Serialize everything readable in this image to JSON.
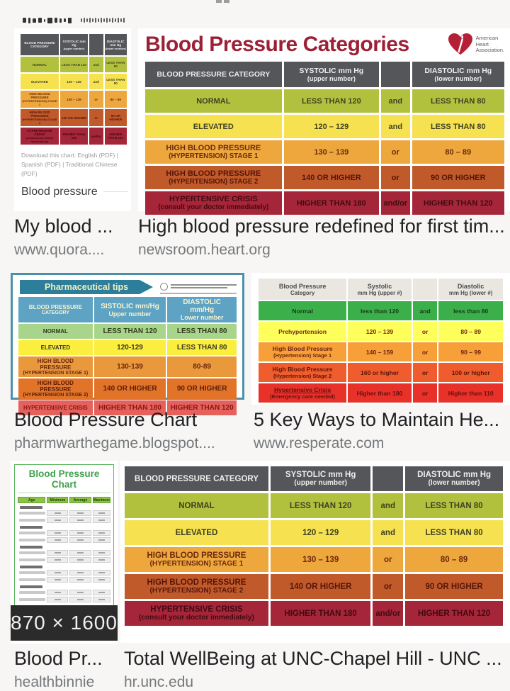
{
  "results": [
    {
      "title": "My blood ...",
      "url": "www.quora...."
    },
    {
      "title": "High blood pressure redefined for first tim...",
      "url": "newsroom.heart.org"
    },
    {
      "title": "Blood Pressure Chart",
      "url": "pharmwarthegame.blogspot...."
    },
    {
      "title": "5 Key Ways to Maintain He...",
      "url": "www.resperate.com"
    },
    {
      "title": "Blood Pr...",
      "url": "healthbinnie"
    },
    {
      "title": "Total WellBeing at UNC-Chapel Hill - UNC ...",
      "url": "hr.unc.edu"
    }
  ],
  "aha_chart": {
    "title": "Blood Pressure Categories",
    "logo_lines": [
      "American",
      "Heart",
      "Association."
    ],
    "brand_red": "#9c2136",
    "header_bg": "#54565a",
    "header_fg": "#ededed",
    "headers": {
      "category": [
        "BLOOD PRESSURE CATEGORY"
      ],
      "systolic": [
        "SYSTOLIC mm Hg",
        "(upper number)"
      ],
      "conj": [
        ""
      ],
      "diastolic": [
        "DIASTOLIC mm Hg",
        "(lower number)"
      ]
    },
    "rows": [
      {
        "category": [
          "NORMAL"
        ],
        "systolic": "LESS THAN 120",
        "conj": "and",
        "diastolic": "LESS THAN 80",
        "bg": "#b1c13e",
        "fg": "#3f4122"
      },
      {
        "category": [
          "ELEVATED"
        ],
        "systolic": "120 – 129",
        "conj": "and",
        "diastolic": "LESS THAN 80",
        "bg": "#f6e251",
        "fg": "#3f4122"
      },
      {
        "category": [
          "HIGH BLOOD PRESSURE",
          "(HYPERTENSION) STAGE 1"
        ],
        "systolic": "130 – 139",
        "conj": "or",
        "diastolic": "80 – 89",
        "bg": "#eda73d",
        "fg": "#6b2a10"
      },
      {
        "category": [
          "HIGH BLOOD PRESSURE",
          "(HYPERTENSION) STAGE 2"
        ],
        "systolic": "140 OR HIGHER",
        "conj": "or",
        "diastolic": "90 OR HIGHER",
        "bg": "#c15a2a",
        "fg": "#55150a"
      },
      {
        "category": [
          "HYPERTENSIVE CRISIS",
          "(consult your doctor immediately)"
        ],
        "systolic": "HIGHER THAN 180",
        "conj": "and/or",
        "diastolic": "HIGHER THAN 120",
        "bg": "#a52639",
        "fg": "#400a12"
      }
    ]
  },
  "quora_image": {
    "download_text": "Download this chart: English (PDF) | Spanish (PDF) | Traditional Chinese (PDF)",
    "heading": "Blood pressure"
  },
  "pharma_chart": {
    "banner": "Pharmaceutical tips",
    "border_color": "#4a92ab",
    "banner_bg": "#2d7e9b",
    "header_bg": "#5ea3c3",
    "header_fg": "#f6f3d0",
    "headers": {
      "category": [
        "BLOOD PRESSURE",
        "CATEGORY"
      ],
      "systolic": [
        "SISTOLIC mm/Hg",
        "Upper number"
      ],
      "diastolic": [
        "DIASTOLIC mm/Hg",
        "Lower number"
      ]
    },
    "rows": [
      {
        "category": [
          "NORMAL"
        ],
        "systolic": "LESS THAN 120",
        "diastolic": "LESS THAN 80",
        "bg": "#a9d48b",
        "fg": "#2f3a1c"
      },
      {
        "category": [
          "ELEVATED"
        ],
        "systolic": "120-129",
        "diastolic": "LESS THAN 80",
        "bg": "#fcee3e",
        "fg": "#3a3a22"
      },
      {
        "category": [
          "HIGH BLOOD PRESSURE",
          "(HYPERTENSION STAGE 1)"
        ],
        "systolic": "130-139",
        "diastolic": "80-89",
        "bg": "#e9993c",
        "fg": "#6d2610"
      },
      {
        "category": [
          "HIGH BLOOD PRESSURE",
          "(HYPERTENSION STAGE 2)"
        ],
        "systolic": "140 OR HIGHER",
        "diastolic": "90 OR HIGHER",
        "bg": "#e27429",
        "fg": "#5c1d08"
      },
      {
        "category": [
          "HYPERTENSIVE CRISIS"
        ],
        "systolic": "HIGHER THAN 180",
        "diastolic": "HIGHER THAN 120",
        "bg": "#e5625c",
        "fg": "#8c1414"
      }
    ]
  },
  "resperate_chart": {
    "header_bg": "#e9e7e0",
    "header_fg": "#4c4c4c",
    "headers": {
      "category": [
        "Blood Pressure",
        "Category"
      ],
      "systolic": [
        "Systolic",
        "mm Hg (upper #)"
      ],
      "conj": [
        ""
      ],
      "diastolic": [
        "Diastolic",
        "mm Hg (lower #)"
      ]
    },
    "rows": [
      {
        "category": [
          "Normal"
        ],
        "systolic": "less than 120",
        "conj": "and",
        "diastolic": "less than 80",
        "bg": "#3bb04a",
        "fg": "#17391a"
      },
      {
        "category": [
          "Prehypertension"
        ],
        "systolic": "120 – 139",
        "conj": "or",
        "diastolic": "80 – 89",
        "bg": "#ffff5c",
        "fg": "#6b2d12"
      },
      {
        "category": [
          "High Blood Pressure",
          "(Hypertension) Stage 1"
        ],
        "systolic": "140 – 159",
        "conj": "or",
        "diastolic": "90 – 99",
        "bg": "#f79f39",
        "fg": "#6b2410"
      },
      {
        "category": [
          "High Blood Pressure",
          "(Hypertension) Stage 2"
        ],
        "systolic": "160 or higher",
        "conj": "or",
        "diastolic": "100 or higher",
        "bg": "#ef5c2e",
        "fg": "#5c1507"
      },
      {
        "category": [
          "Hypertensive Crisis",
          "(Emergency care needed)"
        ],
        "systolic": "Higher than 180",
        "conj": "or",
        "diastolic": "Higher than 110",
        "bg": "#e73129",
        "fg": "#641010"
      }
    ]
  },
  "age_chart": {
    "title": "Blood Pressure Chart",
    "headers": [
      "Age",
      "Minimum",
      "Average",
      "Maximum"
    ],
    "group_count": 8,
    "size_label": "870 × 1600",
    "title_color": "#3da14b",
    "header_bg": "#8ac440"
  }
}
